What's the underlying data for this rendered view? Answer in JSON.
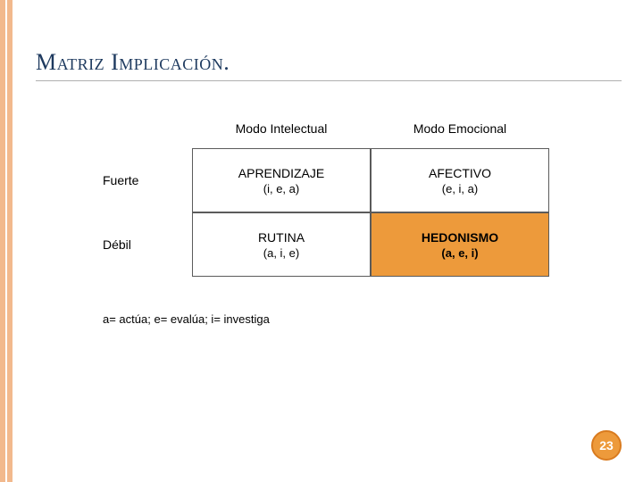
{
  "title": "Matriz Implicación.",
  "colors": {
    "band": "#f2b98d",
    "title_text": "#1e3a5f",
    "border": "#5b5b5b",
    "highlight_bg": "#ed9a3b",
    "badge_bg": "#ed9a3b",
    "badge_border": "#d97b1f",
    "badge_text": "#ffffff",
    "background": "#ffffff"
  },
  "matrix": {
    "column_headers": [
      "Modo Intelectual",
      "Modo Emocional"
    ],
    "row_labels": [
      "Fuerte",
      "Débil"
    ],
    "cells": [
      [
        {
          "title": "APRENDIZAJE",
          "sub": "(i, e, a)",
          "highlight": false
        },
        {
          "title": "AFECTIVO",
          "sub": "(e, i, a)",
          "highlight": false
        }
      ],
      [
        {
          "title": "RUTINA",
          "sub": "(a, i, e)",
          "highlight": false
        },
        {
          "title": "HEDONISMO",
          "sub": "(a, e, i)",
          "highlight": true
        }
      ]
    ]
  },
  "legend": "a= actúa; e= evalúa; i= investiga",
  "page_number": "23"
}
